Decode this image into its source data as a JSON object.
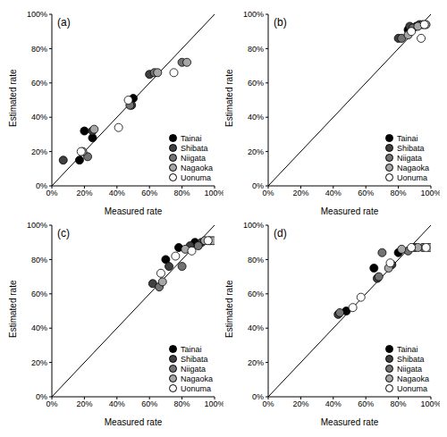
{
  "chart_data": [
    {
      "type": "scatter",
      "title": "(a)",
      "x_label": "Measured rate",
      "y_label": "Estimated rate",
      "legend": "lower right",
      "grid": false,
      "xlim": [
        0,
        100
      ],
      "ylim": [
        0,
        100
      ],
      "xticks": [
        {
          "value": 0,
          "label": "0%"
        },
        {
          "value": 20,
          "label": "20%"
        },
        {
          "value": 40,
          "label": "40%"
        },
        {
          "value": 60,
          "label": "60%"
        },
        {
          "value": 80,
          "label": "80%"
        },
        {
          "value": 100,
          "label": "100%"
        }
      ],
      "yticks": [
        {
          "value": 0,
          "label": "0%"
        },
        {
          "value": 20,
          "label": "20%"
        },
        {
          "value": 40,
          "label": "40%"
        },
        {
          "value": 60,
          "label": "60%"
        },
        {
          "value": 80,
          "label": "80%"
        },
        {
          "value": 100,
          "label": "100%"
        }
      ],
      "series": [
        {
          "name": "Tainai",
          "color": "#000000",
          "marker": "circle",
          "x": [
            17,
            20,
            25,
            50
          ],
          "values": [
            15,
            32,
            28,
            51
          ]
        },
        {
          "name": "Shibata",
          "color": "#404040",
          "marker": "circle",
          "x": [
            7,
            25,
            60,
            49
          ],
          "values": [
            15,
            32,
            65,
            47
          ]
        },
        {
          "name": "Niigata",
          "color": "#737373",
          "marker": "circle",
          "x": [
            22,
            48,
            63,
            80
          ],
          "values": [
            17,
            47,
            66,
            72
          ]
        },
        {
          "name": "Nagaoka",
          "color": "#a6a6a6",
          "marker": "circle",
          "x": [
            19,
            26,
            65,
            83
          ],
          "values": [
            20,
            33,
            66,
            72
          ]
        },
        {
          "name": "Uonuma",
          "color": "#ffffff",
          "marker": "circle",
          "x": [
            18,
            41,
            47,
            75
          ],
          "values": [
            20,
            34,
            50,
            66
          ]
        }
      ]
    },
    {
      "type": "scatter",
      "title": "(b)",
      "x_label": "Measured rate",
      "y_label": "Estimated rate",
      "legend": "lower right",
      "grid": false,
      "xlim": [
        0,
        100
      ],
      "ylim": [
        0,
        100
      ],
      "xticks": [
        {
          "value": 0,
          "label": "0%"
        },
        {
          "value": 20,
          "label": "20%"
        },
        {
          "value": 40,
          "label": "40%"
        },
        {
          "value": 60,
          "label": "60%"
        },
        {
          "value": 80,
          "label": "80%"
        },
        {
          "value": 100,
          "label": "100%"
        }
      ],
      "yticks": [
        {
          "value": 0,
          "label": "0%"
        },
        {
          "value": 20,
          "label": "20%"
        },
        {
          "value": 40,
          "label": "40%"
        },
        {
          "value": 60,
          "label": "60%"
        },
        {
          "value": 80,
          "label": "80%"
        },
        {
          "value": 100,
          "label": "100%"
        }
      ],
      "series": [
        {
          "name": "Tainai",
          "color": "#000000",
          "marker": "circle",
          "x": [
            86,
            91
          ],
          "values": [
            91,
            93
          ]
        },
        {
          "name": "Shibata",
          "color": "#404040",
          "marker": "circle",
          "x": [
            80,
            87,
            93
          ],
          "values": [
            86,
            93,
            94
          ]
        },
        {
          "name": "Niigata",
          "color": "#737373",
          "marker": "circle",
          "x": [
            82,
            89,
            95
          ],
          "values": [
            86,
            92,
            94
          ]
        },
        {
          "name": "Nagaoka",
          "color": "#a6a6a6",
          "marker": "circle",
          "x": [
            86,
            92,
            97
          ],
          "values": [
            88,
            93,
            94
          ]
        },
        {
          "name": "Uonuma",
          "color": "#ffffff",
          "marker": "circle",
          "x": [
            88,
            94,
            96
          ],
          "values": [
            90,
            86,
            94
          ]
        }
      ]
    },
    {
      "type": "scatter",
      "title": "(c)",
      "x_label": "Measured rate",
      "y_label": "Estimated rate",
      "legend": "lower right",
      "grid": false,
      "xlim": [
        0,
        100
      ],
      "ylim": [
        0,
        100
      ],
      "xticks": [
        {
          "value": 0,
          "label": "0%"
        },
        {
          "value": 20,
          "label": "20%"
        },
        {
          "value": 40,
          "label": "40%"
        },
        {
          "value": 60,
          "label": "60%"
        },
        {
          "value": 80,
          "label": "80%"
        },
        {
          "value": 100,
          "label": "100%"
        }
      ],
      "yticks": [
        {
          "value": 0,
          "label": "0%"
        },
        {
          "value": 20,
          "label": "20%"
        },
        {
          "value": 40,
          "label": "40%"
        },
        {
          "value": 60,
          "label": "60%"
        },
        {
          "value": 80,
          "label": "80%"
        },
        {
          "value": 100,
          "label": "100%"
        }
      ],
      "series": [
        {
          "name": "Tainai",
          "color": "#000000",
          "marker": "circle",
          "x": [
            70,
            78,
            88
          ],
          "values": [
            80,
            87,
            90
          ]
        },
        {
          "name": "Shibata",
          "color": "#404040",
          "marker": "circle",
          "x": [
            62,
            72,
            85,
            92
          ],
          "values": [
            66,
            76,
            88,
            90
          ]
        },
        {
          "name": "Niigata",
          "color": "#737373",
          "marker": "circle",
          "x": [
            66,
            80,
            90,
            97
          ],
          "values": [
            64,
            76,
            88,
            91
          ]
        },
        {
          "name": "Nagaoka",
          "color": "#a6a6a6",
          "marker": "circle",
          "x": [
            68,
            82,
            94,
            99
          ],
          "values": [
            67,
            86,
            91,
            91
          ]
        },
        {
          "name": "Uonuma",
          "color": "#ffffff",
          "marker": "circle",
          "x": [
            67,
            76,
            86,
            96
          ],
          "values": [
            72,
            82,
            85,
            91
          ]
        }
      ]
    },
    {
      "type": "scatter",
      "title": "(d)",
      "x_label": "Measured rate",
      "y_label": "Estimated rate",
      "legend": "lower right",
      "grid": false,
      "xlim": [
        0,
        100
      ],
      "ylim": [
        0,
        100
      ],
      "xticks": [
        {
          "value": 0,
          "label": "0%"
        },
        {
          "value": 20,
          "label": "20%"
        },
        {
          "value": 40,
          "label": "40%"
        },
        {
          "value": 60,
          "label": "60%"
        },
        {
          "value": 80,
          "label": "80%"
        },
        {
          "value": 100,
          "label": "100%"
        }
      ],
      "yticks": [
        {
          "value": 0,
          "label": "0%"
        },
        {
          "value": 20,
          "label": "20%"
        },
        {
          "value": 40,
          "label": "40%"
        },
        {
          "value": 60,
          "label": "60%"
        },
        {
          "value": 80,
          "label": "80%"
        },
        {
          "value": 100,
          "label": "100%"
        }
      ],
      "series": [
        {
          "name": "Tainai",
          "color": "#000000",
          "marker": "circle",
          "x": [
            48,
            65,
            80
          ],
          "values": [
            50,
            75,
            84
          ]
        },
        {
          "name": "Shibata",
          "color": "#404040",
          "marker": "circle",
          "x": [
            43,
            67,
            76,
            90
          ],
          "values": [
            48,
            69,
            77,
            87
          ]
        },
        {
          "name": "Niigata",
          "color": "#737373",
          "marker": "circle",
          "x": [
            44,
            68,
            70,
            86,
            95
          ],
          "values": [
            49,
            70,
            84,
            85,
            87
          ]
        },
        {
          "name": "Nagaoka",
          "color": "#a6a6a6",
          "marker": "circle",
          "x": [
            74,
            82,
            92,
            99
          ],
          "values": [
            75,
            86,
            87,
            87
          ]
        },
        {
          "name": "Uonuma",
          "color": "#ffffff",
          "marker": "circle",
          "x": [
            52,
            57,
            75,
            88,
            97
          ],
          "values": [
            52,
            58,
            78,
            87,
            87
          ]
        }
      ]
    }
  ]
}
